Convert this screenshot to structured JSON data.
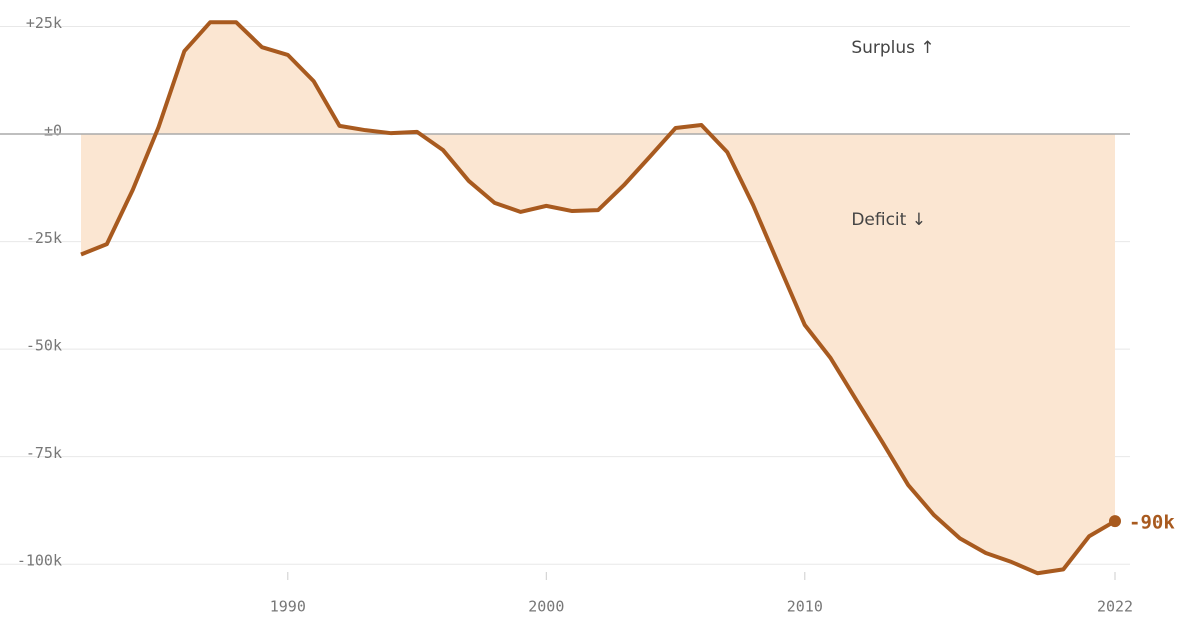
{
  "chart_data": {
    "type": "line",
    "x": [
      1982,
      1983,
      1984,
      1985,
      1986,
      1987,
      1988,
      1989,
      1990,
      1991,
      1992,
      1993,
      1994,
      1995,
      1996,
      1997,
      1998,
      1999,
      2000,
      2001,
      2002,
      2003,
      2004,
      2005,
      2006,
      2007,
      2008,
      2009,
      2010,
      2011,
      2012,
      2013,
      2014,
      2015,
      2016,
      2017,
      2018,
      2019,
      2020,
      2021,
      2022
    ],
    "series": [
      {
        "color": "#a85a1f",
        "fill": "#fbe6d2",
        "values": [
          -28,
          -25.6,
          -13,
          1.6,
          19.3,
          26,
          26,
          20.2,
          18.4,
          12.3,
          1.9,
          0.9,
          0.2,
          0.5,
          -3.7,
          -10.9,
          -16,
          -18.1,
          -16.7,
          -17.9,
          -17.7,
          -11.9,
          -5.3,
          1.4,
          2.1,
          -4.2,
          -16.5,
          -30.5,
          -44.4,
          -52.1,
          -61.9,
          -71.6,
          -81.6,
          -88.6,
          -94,
          -97.4,
          -99.5,
          -102.1,
          -101.2,
          -93.5,
          -90
        ],
        "value_labels": [
          null,
          null,
          null,
          null,
          null,
          null,
          null,
          null,
          null,
          null,
          null,
          null,
          null,
          null,
          null,
          null,
          null,
          null,
          null,
          null,
          null,
          null,
          null,
          null,
          null,
          null,
          null,
          null,
          null,
          null,
          null,
          null,
          null,
          null,
          null,
          null,
          null,
          null,
          null,
          null,
          "-90k"
        ]
      }
    ],
    "xlim": [
      1982,
      2022
    ],
    "xticks": [
      1990,
      2000,
      2010,
      2022
    ],
    "ylim": [
      -106,
      30
    ],
    "yticks": [
      {
        "value": 25,
        "label": "+25k"
      },
      {
        "value": 0,
        "label": "±0"
      },
      {
        "value": -25,
        "label": "-25k"
      },
      {
        "value": -50,
        "label": "-50k"
      },
      {
        "value": -75,
        "label": "-75k"
      },
      {
        "value": -100,
        "label": "-100k"
      }
    ],
    "grid": true,
    "annotations": [
      {
        "text": "Surplus ↑",
        "x": 2011.8,
        "y": 20
      },
      {
        "text": "Deficit ↓",
        "x": 2011.8,
        "y": -20
      }
    ]
  }
}
